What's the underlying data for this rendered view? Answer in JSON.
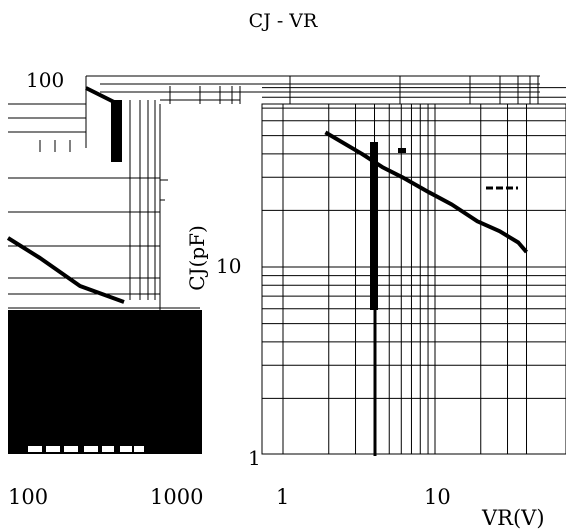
{
  "chart_data": {
    "type": "line",
    "title": "CJ - VR",
    "xlabel": "VR(V)",
    "ylabel": "CJ(pF)",
    "x_scale": "log",
    "y_scale": "log",
    "grid": true,
    "colors": {
      "line": "#000000",
      "grid": "#000000",
      "background": "#ffffff"
    },
    "y_ticks": [
      "100",
      "10",
      "1"
    ],
    "x_ticks": [
      "100",
      "1000",
      "1",
      "10"
    ],
    "panels": [
      {
        "name": "left-fragment",
        "series": [
          {
            "x": [
              210,
              300,
              400
            ],
            "y": [
              105,
              95,
              88
            ]
          },
          {
            "x": [
              70,
              140,
              270,
              420
            ],
            "y": [
              16,
              10,
              7.5,
              6.8
            ]
          }
        ]
      },
      {
        "name": "right-fragment",
        "xlim": [
          1,
          40
        ],
        "ylim": [
          1,
          100
        ],
        "series": [
          {
            "x": [
              1.9,
              3.3,
              4.5,
              6.1,
              9.1,
              12.9,
              19.0,
              26.6,
              35.3,
              40.0
            ],
            "y": [
              52,
              40,
              34,
              30,
              25,
              21.5,
              17.5,
              15.5,
              13.5,
              12
            ]
          }
        ]
      }
    ]
  }
}
